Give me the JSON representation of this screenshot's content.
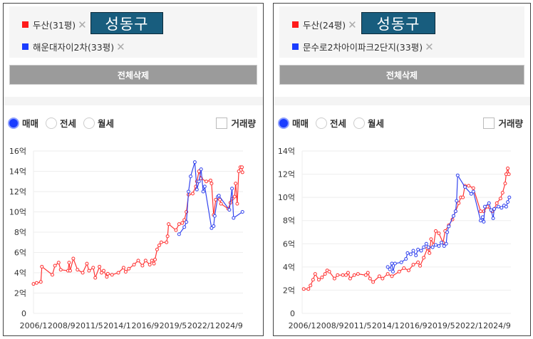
{
  "panels": [
    {
      "items": [
        {
          "label": "두산(31평)",
          "color": "#ff1a1a",
          "remove": "✕"
        },
        {
          "label": "해운대자이2차(33평)",
          "color": "#1a3cff",
          "remove": "✕"
        }
      ],
      "region_label": "성동구",
      "clear_all": "전체삭제",
      "radios": [
        {
          "label": "매매",
          "checked": true
        },
        {
          "label": "전세",
          "checked": false
        },
        {
          "label": "월세",
          "checked": false
        }
      ],
      "volume_label": "거래량",
      "chart_data": {
        "type": "line",
        "xlim": [
          2006,
          2026
        ],
        "ylim": [
          0,
          16
        ],
        "yticks": [
          0,
          2,
          4,
          6,
          8,
          10,
          12,
          14,
          16
        ],
        "ytick_labels": [
          "0",
          "2억",
          "4억",
          "6억",
          "8억",
          "10억",
          "12억",
          "14억",
          "16억"
        ],
        "xticks": [
          2006.0,
          2008.67,
          2011.33,
          2014.0,
          2016.67,
          2019.33,
          2022.0,
          2024.67
        ],
        "xtick_labels": [
          "2006/1",
          "2008/9",
          "2011/5",
          "2014/1",
          "2016/9",
          "2019/5",
          "2022/1",
          "2024/9"
        ],
        "series": [
          {
            "name": "두산(31평)",
            "color": "#ff3333",
            "x": [
              2006.0,
              2006.3,
              2006.7,
              2006.8,
              2007.8,
              2008.05,
              2008.4,
              2008.6,
              2009.3,
              2009.4,
              2009.5,
              2009.8,
              2010.2,
              2010.7,
              2011.1,
              2011.3,
              2011.7,
              2011.9,
              2012.3,
              2012.5,
              2012.7,
              2013.0,
              2013.1,
              2013.5,
              2014.1,
              2014.6,
              2014.8,
              2015.1,
              2015.6,
              2016.0,
              2016.4,
              2016.7,
              2017.1,
              2017.3,
              2017.5,
              2017.6,
              2017.8,
              2018.0,
              2018.2,
              2018.7,
              2018.8,
              2018.9,
              2019.6,
              2019.9,
              2020.2,
              2020.4,
              2020.6,
              2020.8,
              2021.2,
              2021.5,
              2021.6,
              2021.8,
              2022.0,
              2022.5,
              2022.9,
              2023.0,
              2023.2,
              2023.4,
              2023.8,
              2023.9,
              2024.6,
              2024.8,
              2025.0,
              2025.2,
              2025.3,
              2025.45,
              2025.6,
              2025.75,
              2025.9,
              2025.95
            ],
            "y": [
              2.9,
              3.0,
              3.1,
              4.6,
              3.8,
              4.7,
              5.0,
              4.3,
              4.2,
              5.0,
              4.2,
              5.4,
              4.3,
              4.0,
              4.9,
              4.2,
              4.5,
              3.5,
              4.6,
              4.0,
              4.2,
              3.6,
              3.9,
              3.8,
              4.0,
              4.5,
              4.1,
              4.4,
              4.8,
              5.2,
              4.7,
              5.2,
              4.8,
              5.2,
              4.9,
              5.3,
              6.3,
              6.7,
              7.0,
              7.0,
              7.6,
              8.8,
              8.2,
              8.8,
              8.9,
              9.2,
              10.0,
              11.7,
              11.8,
              12.5,
              13.0,
              14.0,
              13.3,
              13.0,
              13.1,
              12.8,
              9.7,
              11.2,
              11.2,
              10.8,
              10.3,
              10.9,
              11.3,
              11.5,
              12.8,
              10.8,
              14.0,
              14.4,
              14.4,
              13.9
            ]
          },
          {
            "name": "해운대자이2차(33평)",
            "color": "#3344ee",
            "x": [
              2019.9,
              2020.4,
              2020.6,
              2020.8,
              2021.0,
              2021.4,
              2021.6,
              2021.8,
              2022.0,
              2022.2,
              2022.35,
              2023.0,
              2023.2,
              2023.3,
              2023.6,
              2023.7,
              2024.7,
              2024.95,
              2025.1,
              2025.95
            ],
            "y": [
              7.8,
              8.5,
              9.0,
              12.0,
              13.5,
              14.9,
              12.2,
              13.0,
              14.2,
              12.0,
              12.5,
              8.4,
              8.6,
              9.6,
              11.5,
              11.6,
              10.2,
              12.3,
              9.4,
              10.0
            ]
          }
        ]
      }
    },
    {
      "items": [
        {
          "label": "두산(24평)",
          "color": "#ff1a1a",
          "remove": "✕"
        },
        {
          "label": "문수로2차아이파크2단지(33평)",
          "color": "#1a3cff",
          "remove": "✕"
        }
      ],
      "region_label": "성동구",
      "clear_all": "전체삭제",
      "radios": [
        {
          "label": "매매",
          "checked": true
        },
        {
          "label": "전세",
          "checked": false
        },
        {
          "label": "월세",
          "checked": false
        }
      ],
      "volume_label": "거래량",
      "chart_data": {
        "type": "line",
        "xlim": [
          2006,
          2026
        ],
        "ylim": [
          0,
          14
        ],
        "yticks": [
          0,
          2,
          4,
          6,
          8,
          10,
          12,
          14
        ],
        "ytick_labels": [
          "0",
          "2억",
          "4억",
          "6억",
          "8억",
          "10억",
          "12억",
          "14억"
        ],
        "xticks": [
          2006.0,
          2008.67,
          2011.33,
          2014.0,
          2016.67,
          2019.33,
          2022.0,
          2024.67
        ],
        "xtick_labels": [
          "2006/1",
          "2008/9",
          "2011/5",
          "2014/1",
          "2016/9",
          "2019/5",
          "2022/1",
          "2024/9"
        ],
        "series": [
          {
            "name": "두산(24평)",
            "color": "#ff3333",
            "x": [
              2006.15,
              2006.6,
              2006.8,
              2007.05,
              2007.25,
              2007.6,
              2007.9,
              2008.2,
              2008.4,
              2008.6,
              2009.1,
              2009.4,
              2009.9,
              2010.2,
              2010.4,
              2010.6,
              2011.0,
              2011.35,
              2012.1,
              2012.3,
              2012.5,
              2012.8,
              2013.4,
              2013.7,
              2014.2,
              2014.6,
              2015.3,
              2015.75,
              2016.2,
              2016.65,
              2017.1,
              2017.3,
              2017.65,
              2018.0,
              2018.2,
              2018.35,
              2018.6,
              2018.8,
              2019.1,
              2019.5,
              2019.7,
              2020.05,
              2020.4,
              2020.7,
              2021.0,
              2021.2,
              2021.4,
              2021.6,
              2021.95,
              2022.4,
              2023.1,
              2023.4,
              2023.75,
              2024.2,
              2024.4,
              2024.65,
              2025.0,
              2025.2,
              2025.45,
              2025.55,
              2025.7,
              2025.8
            ],
            "y": [
              2.1,
              2.1,
              2.4,
              2.9,
              3.4,
              2.9,
              3.1,
              3.4,
              3.7,
              3.6,
              3.0,
              3.3,
              3.3,
              3.3,
              3.5,
              3.0,
              3.3,
              3.4,
              3.3,
              3.5,
              3.0,
              2.7,
              3.2,
              3.0,
              3.4,
              3.2,
              3.6,
              3.9,
              3.7,
              4.2,
              4.4,
              4.1,
              4.8,
              5.6,
              5.2,
              6.4,
              5.9,
              7.1,
              6.9,
              6.1,
              7.1,
              7.6,
              8.1,
              8.8,
              9.5,
              10.0,
              10.0,
              11.0,
              11.0,
              10.8,
              8.8,
              8.8,
              9.2,
              8.8,
              9.0,
              9.5,
              9.9,
              10.4,
              11.2,
              12.0,
              12.5,
              12.0
            ]
          },
          {
            "name": "문수로2차아이파크2단지(33평)",
            "color": "#3344ee",
            "x": [
              2014.2,
              2014.4,
              2014.6,
              2014.7,
              2014.9,
              2015.5,
              2015.95,
              2016.1,
              2016.4,
              2016.65,
              2016.9,
              2017.1,
              2017.4,
              2017.65,
              2017.9,
              2018.1,
              2018.5,
              2018.8,
              2019.1,
              2019.35,
              2019.6,
              2019.8,
              2019.9,
              2020.05,
              2020.5,
              2020.7,
              2020.8,
              2020.9,
              2021.6,
              2022.2,
              2022.4,
              2023.1,
              2023.3,
              2023.4,
              2023.5,
              2023.9,
              2024.1,
              2024.3,
              2024.4,
              2024.8,
              2025.1,
              2025.35,
              2025.55,
              2025.7,
              2025.85
            ],
            "y": [
              4.0,
              3.8,
              4.3,
              3.6,
              4.3,
              4.4,
              4.7,
              5.2,
              5.1,
              5.4,
              5.0,
              5.5,
              5.4,
              5.7,
              6.0,
              5.7,
              5.7,
              5.9,
              5.8,
              6.1,
              5.8,
              6.0,
              7.0,
              7.5,
              8.4,
              8.8,
              9.7,
              11.9,
              10.9,
              10.3,
              10.5,
              8.0,
              8.3,
              7.9,
              9.2,
              9.5,
              8.9,
              8.2,
              9.0,
              9.2,
              9.1,
              9.3,
              9.2,
              9.6,
              10.0
            ]
          }
        ]
      }
    }
  ]
}
